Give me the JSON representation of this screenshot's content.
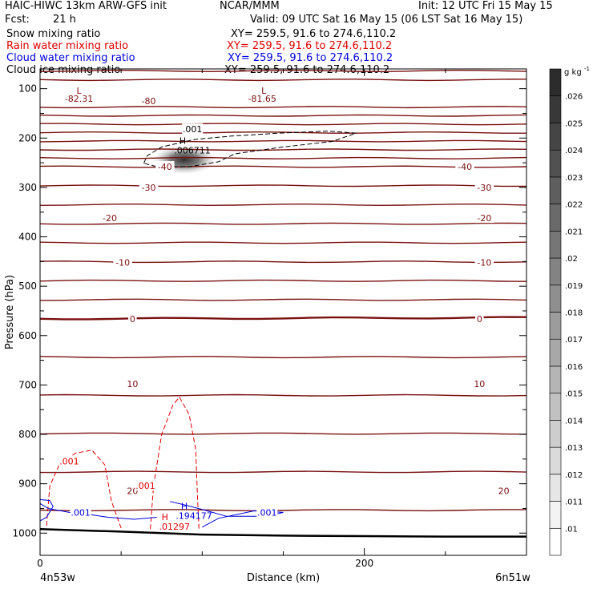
{
  "header": {
    "title": "HAIC-HIWC 13km ARW-GFS init",
    "org": "NCAR/MMM",
    "init": "Init: 12 UTC Fri 15 May 15",
    "fcst_label": "Fcst:",
    "fcst_value": "21 h",
    "valid": "Valid: 09 UTC Sat 16 May 15 (06 LST Sat 16 May 15)",
    "fields": [
      {
        "name": "Snow mixing ratio",
        "xy": "XY= 259.5, 91.6 to 274.6,110.2",
        "color": "#000000"
      },
      {
        "name": "Rain water mixing ratio",
        "xy": "XY= 259.5, 91.6 to 274.6,110.2",
        "color": "#e00000"
      },
      {
        "name": "Cloud water mixing ratio",
        "xy": "XY= 259.5, 91.6 to 274.6,110.2",
        "color": "#0000e0"
      },
      {
        "name": "Cloud ice mixing ratio",
        "xy": "XY= 259.5, 91.6 to 274.6,110.2",
        "color": "#000000"
      }
    ]
  },
  "chart_data": {
    "type": "cross-section contour",
    "xlabel": "Distance (km)",
    "ylabel": "Pressure (hPa)",
    "xlim": [
      0,
      300
    ],
    "ylim": [
      1045,
      60
    ],
    "x_ticks": [
      0,
      200
    ],
    "y_ticks": [
      100,
      200,
      300,
      400,
      500,
      600,
      700,
      800,
      900,
      1000
    ],
    "left_endpoint": "4n53w",
    "right_endpoint": "6n51w",
    "temperature_label_color": "#7a1010",
    "temperature_levels": [
      -82,
      -80,
      -75,
      -70,
      -65,
      -60,
      -55,
      -50,
      -45,
      -40,
      -35,
      -30,
      -25,
      -20,
      -15,
      -10,
      -5,
      0,
      5,
      10,
      15,
      20,
      25
    ],
    "temperature_labels": [
      {
        "text": "-82.31",
        "x": 24,
        "p": 120
      },
      {
        "text": "-80",
        "x": 67,
        "p": 125
      },
      {
        "text": "-81.65",
        "x": 137,
        "p": 120
      },
      {
        "text": "-40",
        "x": 77,
        "p": 258
      },
      {
        "text": "-40",
        "x": 262,
        "p": 258
      },
      {
        "text": "-30",
        "x": 67,
        "p": 300
      },
      {
        "text": "-30",
        "x": 274,
        "p": 300
      },
      {
        "text": "-20",
        "x": 43,
        "p": 362
      },
      {
        "text": "-20",
        "x": 274,
        "p": 362
      },
      {
        "text": "-10",
        "x": 51,
        "p": 452
      },
      {
        "text": "-10",
        "x": 274,
        "p": 452
      },
      {
        "text": "0",
        "x": 57,
        "p": 566
      },
      {
        "text": "0",
        "x": 271,
        "p": 566
      },
      {
        "text": "10",
        "x": 57,
        "p": 698
      },
      {
        "text": "10",
        "x": 271,
        "p": 698
      },
      {
        "text": "20",
        "x": 57,
        "p": 914
      },
      {
        "text": "20",
        "x": 286,
        "p": 914
      }
    ],
    "low_markers": [
      {
        "text": "L",
        "x": 24,
        "p": 104
      },
      {
        "text": "L",
        "x": 138,
        "p": 104
      }
    ],
    "high_markers": [
      {
        "text": "H",
        "x": 88,
        "p": 212,
        "value": ".006711",
        "color": "#000000"
      },
      {
        "text": "H",
        "x": 77,
        "p": 974,
        "value": ".01297",
        "color": "#e00000"
      },
      {
        "text": "H",
        "x": 89,
        "p": 952,
        "value": ".194177",
        "color": "#0000e0"
      }
    ],
    "contour_labels": [
      {
        "text": ".001",
        "x": 94,
        "p": 182,
        "color": "#000000"
      },
      {
        "text": ".001",
        "x": 18,
        "p": 854,
        "color": "#e00000"
      },
      {
        "text": ".001",
        "x": 65,
        "p": 904,
        "color": "#e00000"
      },
      {
        "text": ".001",
        "x": 25,
        "p": 958,
        "color": "#0000e0"
      },
      {
        "text": ".001",
        "x": 140,
        "p": 958,
        "color": "#0000e0"
      }
    ],
    "snow_max": ".006711",
    "colorbar": {
      "unit": "g kg",
      "unit_exp": "-1",
      "levels": [
        ".01",
        ".011",
        ".012",
        ".013",
        ".014",
        ".015",
        ".016",
        ".017",
        ".018",
        ".019",
        ".02",
        ".021",
        ".022",
        ".023",
        ".024",
        ".025",
        ".026"
      ]
    }
  }
}
